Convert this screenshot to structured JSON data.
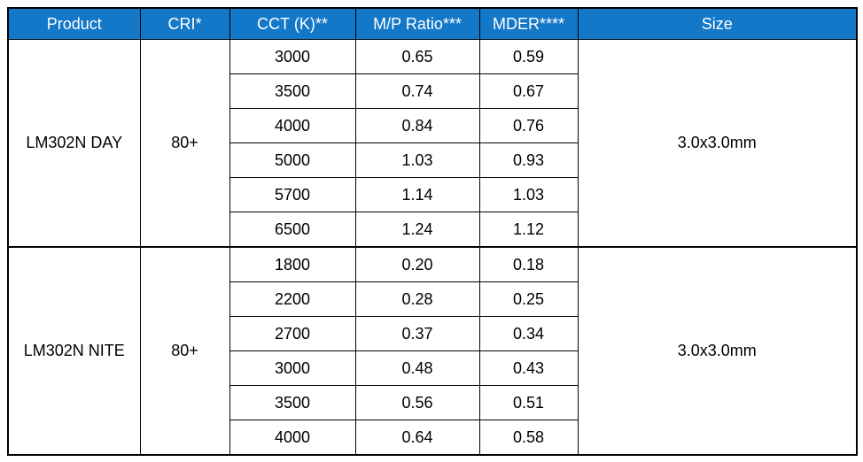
{
  "colors": {
    "header_bg": "#1478C8",
    "header_text": "#FFFFFF",
    "border": "#000000"
  },
  "table": {
    "headers": {
      "product": "Product",
      "cri": "CRI*",
      "cct": "CCT (K)**",
      "mp_ratio": "M/P Ratio***",
      "mder": "MDER****",
      "size": "Size"
    },
    "sections": [
      {
        "product": "LM302N DAY",
        "cri": "80+",
        "size": "3.0x3.0mm",
        "rows": [
          {
            "cct": "3000",
            "mp_ratio": "0.65",
            "mder": "0.59"
          },
          {
            "cct": "3500",
            "mp_ratio": "0.74",
            "mder": "0.67"
          },
          {
            "cct": "4000",
            "mp_ratio": "0.84",
            "mder": "0.76"
          },
          {
            "cct": "5000",
            "mp_ratio": "1.03",
            "mder": "0.93"
          },
          {
            "cct": "5700",
            "mp_ratio": "1.14",
            "mder": "1.03"
          },
          {
            "cct": "6500",
            "mp_ratio": "1.24",
            "mder": "1.12"
          }
        ]
      },
      {
        "product": "LM302N NITE",
        "cri": "80+",
        "size": "3.0x3.0mm",
        "rows": [
          {
            "cct": "1800",
            "mp_ratio": "0.20",
            "mder": "0.18"
          },
          {
            "cct": "2200",
            "mp_ratio": "0.28",
            "mder": "0.25"
          },
          {
            "cct": "2700",
            "mp_ratio": "0.37",
            "mder": "0.34"
          },
          {
            "cct": "3000",
            "mp_ratio": "0.48",
            "mder": "0.43"
          },
          {
            "cct": "3500",
            "mp_ratio": "0.56",
            "mder": "0.51"
          },
          {
            "cct": "4000",
            "mp_ratio": "0.64",
            "mder": "0.58"
          }
        ]
      }
    ]
  }
}
